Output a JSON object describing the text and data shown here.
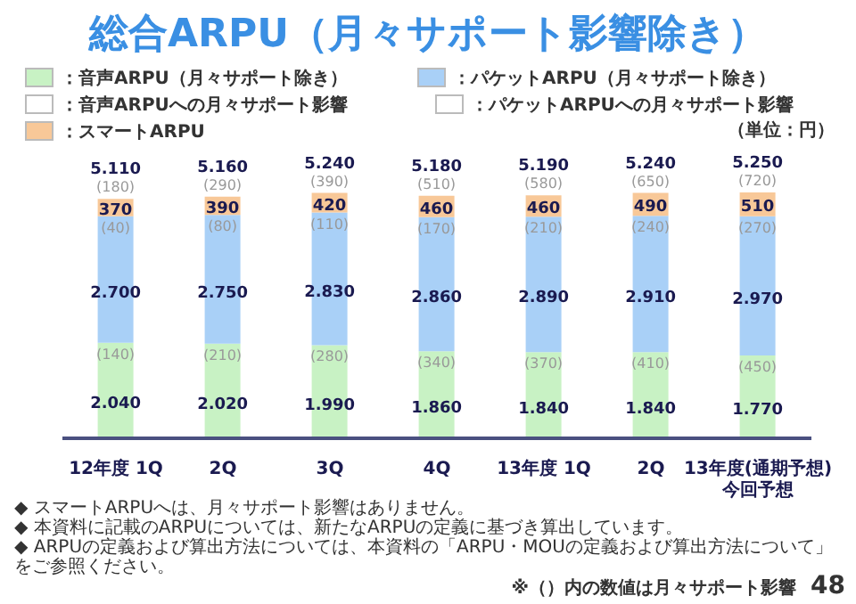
{
  "chart_data": {
    "type": "bar",
    "title": "総合ARPU（月々サポート影響除き）",
    "stacked": true,
    "legend": "top",
    "categories": [
      "12年度 1Q",
      "2Q",
      "3Q",
      "4Q",
      "13年度 1Q",
      "2Q",
      "13年度(通期予想)\n今回予想"
    ],
    "series": [
      {
        "name": "：音声ARPU（月々サポート除き）",
        "color": "#c8f2c4",
        "values": [
          2040,
          2020,
          1990,
          1860,
          1840,
          1840,
          1770
        ],
        "value_labels": [
          "2.040",
          "2.020",
          "1.990",
          "1.860",
          "1.840",
          "1.840",
          "1.770"
        ]
      },
      {
        "name": "：音声ARPUへの月々サポート影響",
        "color": "#ffffff",
        "values": [
          null,
          null,
          null,
          null,
          null,
          null,
          null
        ],
        "value_labels": [
          "(140)",
          "(210)",
          "(280)",
          "(340)",
          "(370)",
          "(410)",
          "(450)"
        ]
      },
      {
        "name": "：パケットARPU（月々サポート除き）",
        "color": "#a9d0f7",
        "values": [
          2700,
          2750,
          2830,
          2860,
          2890,
          2910,
          2970
        ],
        "value_labels": [
          "2.700",
          "2.750",
          "2.830",
          "2.860",
          "2.890",
          "2.910",
          "2.970"
        ]
      },
      {
        "name": "：パケットARPUへの月々サポート影響",
        "color": "#ffffff",
        "values": [
          null,
          null,
          null,
          null,
          null,
          null,
          null
        ],
        "value_labels": [
          "(40)",
          "(80)",
          "(110)",
          "(170)",
          "(210)",
          "(240)",
          "(270)"
        ]
      },
      {
        "name": "：スマートARPU",
        "color": "#f8c898",
        "values": [
          370,
          390,
          420,
          460,
          460,
          490,
          510
        ],
        "value_labels": [
          "370",
          "390",
          "420",
          "460",
          "460",
          "490",
          "510"
        ]
      },
      {
        "values": [
          null,
          null,
          null,
          null,
          null,
          null,
          null
        ],
        "value_labels": [
          "(180)",
          "(290)",
          "(390)",
          "(510)",
          "(580)",
          "(650)",
          "(720)"
        ]
      }
    ],
    "totals": [
      "5.110",
      "5.160",
      "5.240",
      "5.180",
      "5.190",
      "5.240",
      "5.250"
    ],
    "annotations": [
      "（単位：円）",
      "◆ スマートARPUへは、月々サポート影響はありません。",
      "◆ 本資料に記載のARPUについては、新たなARPUの定義に基づき算出しています。",
      "◆ ARPUの定義および算出方法については、本資料の「ARPU・MOUの定義および算出方法について」をご参照ください。",
      "※（）内の数値は月々サポート影響",
      "48"
    ]
  }
}
